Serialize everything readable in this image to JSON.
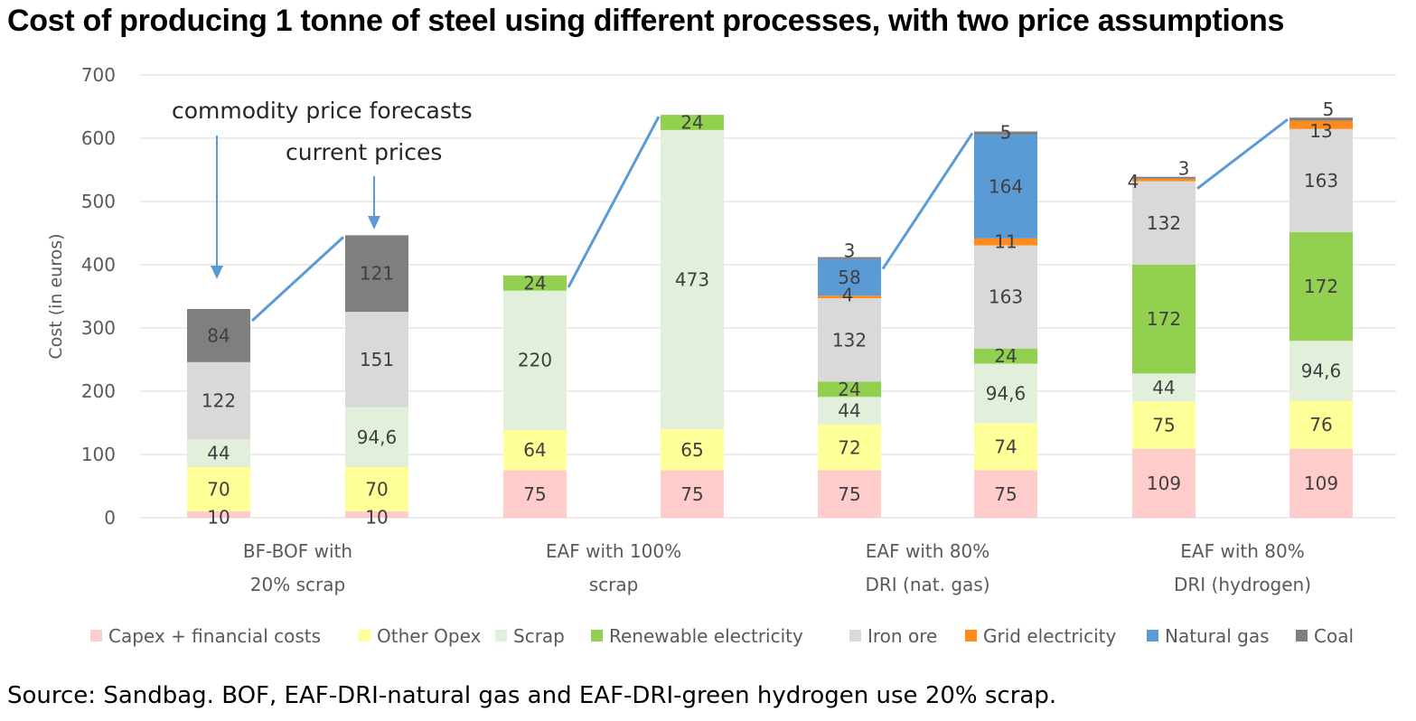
{
  "title": "Cost of producing 1 tonne of steel using different processes, with two price assumptions",
  "source": "Source: Sandbag. BOF, EAF-DRI-natural gas and EAF-DRI-green hydrogen use 20% scrap.",
  "chart_data": {
    "type": "bar",
    "stacked": true,
    "ylabel": "Cost (in euros)",
    "ylim": [
      0,
      700
    ],
    "yticks": [
      0,
      100,
      200,
      300,
      400,
      500,
      600,
      700
    ],
    "grid": true,
    "legend_position": "bottom",
    "categories": [
      {
        "lines": [
          "BF-BOF with",
          "20% scrap"
        ]
      },
      {
        "lines": [
          "EAF with 100%",
          "scrap"
        ]
      },
      {
        "lines": [
          "EAF with 80%",
          "DRI (nat. gas)"
        ]
      },
      {
        "lines": [
          "EAF with 80%",
          "DRI (hydrogen)"
        ]
      }
    ],
    "series_names": [
      "Capex + financial costs",
      "Other Opex",
      "Scrap",
      "Renewable electricity",
      "Iron ore",
      "Grid electricity",
      "Natural gas",
      "Coal"
    ],
    "series_colors": [
      "#ffcccc",
      "#ffff99",
      "#e2efda",
      "#92d050",
      "#d9d9d9",
      "#ff8c1a",
      "#5b9bd5",
      "#7f7f7f"
    ],
    "bars": [
      {
        "category": 0,
        "scenario": "commodity price forecasts",
        "values": [
          10,
          70,
          44,
          0,
          122,
          0,
          0,
          84
        ],
        "labels": [
          "10",
          "70",
          "44",
          "",
          "122",
          "",
          "",
          "84"
        ]
      },
      {
        "category": 0,
        "scenario": "current prices",
        "values": [
          10,
          70,
          94.6,
          0,
          151,
          0,
          0,
          121
        ],
        "labels": [
          "10",
          "70",
          "94,6",
          "",
          "151",
          "",
          "",
          "121"
        ]
      },
      {
        "category": 1,
        "scenario": "commodity price forecasts",
        "values": [
          75,
          64,
          220,
          24,
          0,
          0,
          0,
          0
        ],
        "labels": [
          "75",
          "64",
          "220",
          "24",
          "",
          "",
          "",
          ""
        ]
      },
      {
        "category": 1,
        "scenario": "current prices",
        "values": [
          75,
          65,
          473,
          24,
          0,
          0,
          0,
          0
        ],
        "labels": [
          "75",
          "65",
          "473",
          "24",
          "",
          "",
          "",
          ""
        ]
      },
      {
        "category": 2,
        "scenario": "commodity price forecasts",
        "values": [
          75,
          72,
          44,
          24,
          132,
          4,
          58,
          3
        ],
        "labels": [
          "75",
          "72",
          "44",
          "24",
          "132",
          "4",
          "58",
          "3"
        ]
      },
      {
        "category": 2,
        "scenario": "current prices",
        "values": [
          75,
          74,
          94.6,
          24,
          163,
          11,
          164,
          5
        ],
        "labels": [
          "75",
          "74",
          "94,6",
          "24",
          "163",
          "11",
          "164",
          "5"
        ]
      },
      {
        "category": 3,
        "scenario": "commodity price forecasts",
        "values": [
          109,
          75,
          44,
          172,
          132,
          4,
          0,
          3
        ],
        "labels": [
          "109",
          "75",
          "44",
          "172",
          "132",
          "4",
          "",
          "3"
        ]
      },
      {
        "category": 3,
        "scenario": "current prices",
        "values": [
          109,
          76,
          94.6,
          172,
          163,
          13,
          0,
          5
        ],
        "labels": [
          "109",
          "76",
          "94,6",
          "172",
          "163",
          "13",
          "",
          "5"
        ]
      }
    ],
    "annotations": [
      "commodity price forecasts",
      "current prices"
    ]
  }
}
